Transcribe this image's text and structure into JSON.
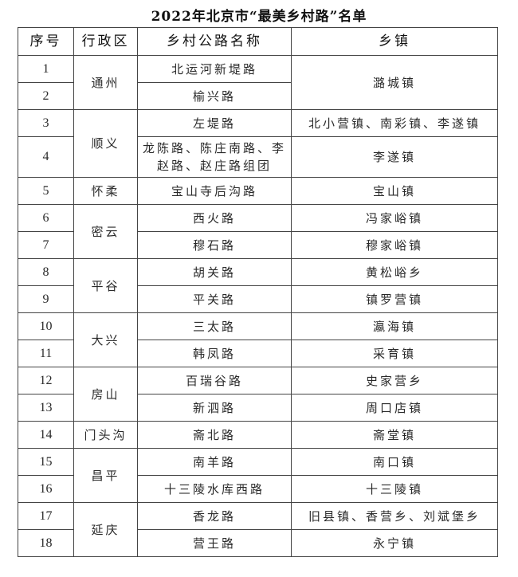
{
  "title": "2022年北京市“最美乡村路”名单",
  "headers": [
    "序号",
    "行政区",
    "乡村公路名称",
    "乡镇"
  ],
  "rows": [
    {
      "no": "1",
      "district": "通州",
      "road": "北运河新堤路",
      "town": "潞城镇"
    },
    {
      "no": "2",
      "road": "榆兴路"
    },
    {
      "no": "3",
      "district": "顺义",
      "road": "左堤路",
      "town": "北小营镇、南彩镇、李遂镇"
    },
    {
      "no": "4",
      "road": "龙陈路、陈庄南路、李赵路、赵庄路组团",
      "town": "李遂镇"
    },
    {
      "no": "5",
      "district": "怀柔",
      "road": "宝山寺后沟路",
      "town": "宝山镇"
    },
    {
      "no": "6",
      "district": "密云",
      "road": "西火路",
      "town": "冯家峪镇"
    },
    {
      "no": "7",
      "road": "穆石路",
      "town": "穆家峪镇"
    },
    {
      "no": "8",
      "district": "平谷",
      "road": "胡关路",
      "town": "黄松峪乡"
    },
    {
      "no": "9",
      "road": "平关路",
      "town": "镇罗营镇"
    },
    {
      "no": "10",
      "district": "大兴",
      "road": "三太路",
      "town": "瀛海镇"
    },
    {
      "no": "11",
      "road": "韩凤路",
      "town": "采育镇"
    },
    {
      "no": "12",
      "district": "房山",
      "road": "百瑞谷路",
      "town": "史家营乡"
    },
    {
      "no": "13",
      "road": "新泗路",
      "town": "周口店镇"
    },
    {
      "no": "14",
      "district": "门头沟",
      "road": "斋北路",
      "town": "斋堂镇"
    },
    {
      "no": "15",
      "district": "昌平",
      "road": "南羊路",
      "town": "南口镇"
    },
    {
      "no": "16",
      "road": "十三陵水库西路",
      "town": "十三陵镇"
    },
    {
      "no": "17",
      "district": "延庆",
      "road": "香龙路",
      "town": "旧县镇、香营乡、刘斌堡乡"
    },
    {
      "no": "18",
      "road": "营王路",
      "town": "永宁镇"
    }
  ]
}
